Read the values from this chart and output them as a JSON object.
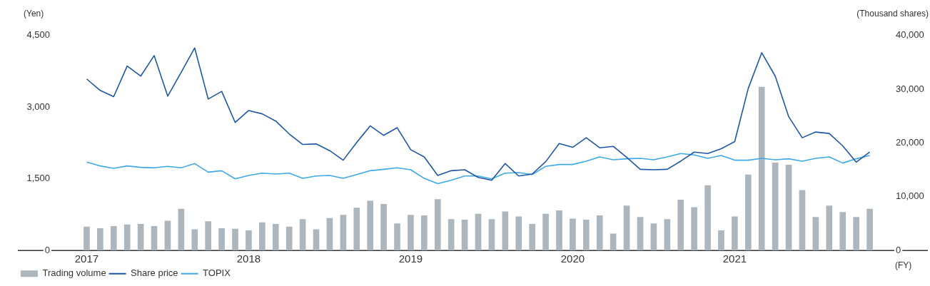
{
  "chart_data": {
    "type": "bar",
    "xlabel": "(FY)",
    "ylabel": "(Yen)",
    "y2label": "(Thousand shares)",
    "categories": [
      "2017",
      null,
      null,
      null,
      null,
      null,
      null,
      null,
      null,
      null,
      null,
      null,
      "2018",
      null,
      null,
      null,
      null,
      null,
      null,
      null,
      null,
      null,
      null,
      null,
      "2019",
      null,
      null,
      null,
      null,
      null,
      null,
      null,
      null,
      null,
      null,
      null,
      "2020",
      null,
      null,
      null,
      null,
      null,
      null,
      null,
      null,
      null,
      null,
      null,
      "2021",
      null,
      null,
      null,
      null,
      null,
      null,
      null,
      null,
      null,
      null
    ],
    "series": [
      {
        "name": "Trading volume",
        "axis": "y2",
        "color": "#adb6bd",
        "values": [
          4400,
          4100,
          4500,
          4800,
          4900,
          4500,
          5500,
          7700,
          3900,
          5400,
          4100,
          4000,
          3700,
          5200,
          4900,
          4400,
          5800,
          3900,
          6000,
          6600,
          7900,
          9200,
          8600,
          5000,
          6600,
          6500,
          9500,
          5800,
          5700,
          6800,
          5800,
          7200,
          6300,
          4900,
          6800,
          7400,
          5900,
          5700,
          6500,
          3100,
          8300,
          6200,
          5000,
          5800,
          9400,
          8000,
          12100,
          3700,
          6300,
          14100,
          30400,
          16300,
          15900,
          11200,
          6200,
          8300,
          7100,
          6200,
          7700
        ]
      },
      {
        "name": "Share price",
        "type": "line",
        "axis": "y",
        "color": "#1f56a5",
        "values": [
          3590,
          3350,
          3220,
          3860,
          3650,
          4080,
          3230,
          3730,
          4240,
          3170,
          3330,
          2680,
          2930,
          2860,
          2710,
          2440,
          2220,
          2230,
          2090,
          1890,
          2260,
          2610,
          2410,
          2570,
          2110,
          1960,
          1570,
          1670,
          1690,
          1530,
          1470,
          1820,
          1560,
          1600,
          1860,
          2240,
          2160,
          2360,
          2150,
          2180,
          1950,
          1700,
          1690,
          1700,
          1870,
          2060,
          2030,
          2130,
          2280,
          3390,
          4140,
          3650,
          2800,
          2360,
          2480,
          2450,
          2190,
          1850,
          2060
        ]
      },
      {
        "name": "TOPIX",
        "type": "line",
        "axis": "y",
        "color": "#3fa9e6",
        "values": [
          1850,
          1770,
          1720,
          1770,
          1740,
          1730,
          1760,
          1730,
          1820,
          1640,
          1670,
          1500,
          1570,
          1620,
          1600,
          1620,
          1510,
          1560,
          1570,
          1510,
          1590,
          1670,
          1700,
          1730,
          1690,
          1510,
          1400,
          1470,
          1560,
          1560,
          1500,
          1620,
          1630,
          1590,
          1760,
          1800,
          1800,
          1870,
          1960,
          1900,
          1920,
          1930,
          1900,
          1960,
          2030,
          2000,
          1930,
          1990,
          1890,
          1890,
          1930,
          1900,
          1920,
          1870,
          1930,
          1960,
          1830,
          1920,
          1990
        ]
      }
    ],
    "ylim": [
      0,
      4500
    ],
    "yticks": [
      0,
      {
        "value": 1500,
        "label": "1,500"
      },
      {
        "value": 3000,
        "label": "3,000"
      },
      {
        "value": 4500,
        "label": "4,500"
      }
    ],
    "y2lim": [
      0,
      40000
    ],
    "y2ticks": [
      0,
      {
        "value": 10000,
        "label": "10,000"
      },
      {
        "value": 20000,
        "label": "20,000"
      },
      {
        "value": 30000,
        "label": "30,000"
      },
      {
        "value": 40000,
        "label": "40,000"
      }
    ],
    "grid": false,
    "legend": "bottom left",
    "marker": "none",
    "line_style": "solid"
  }
}
